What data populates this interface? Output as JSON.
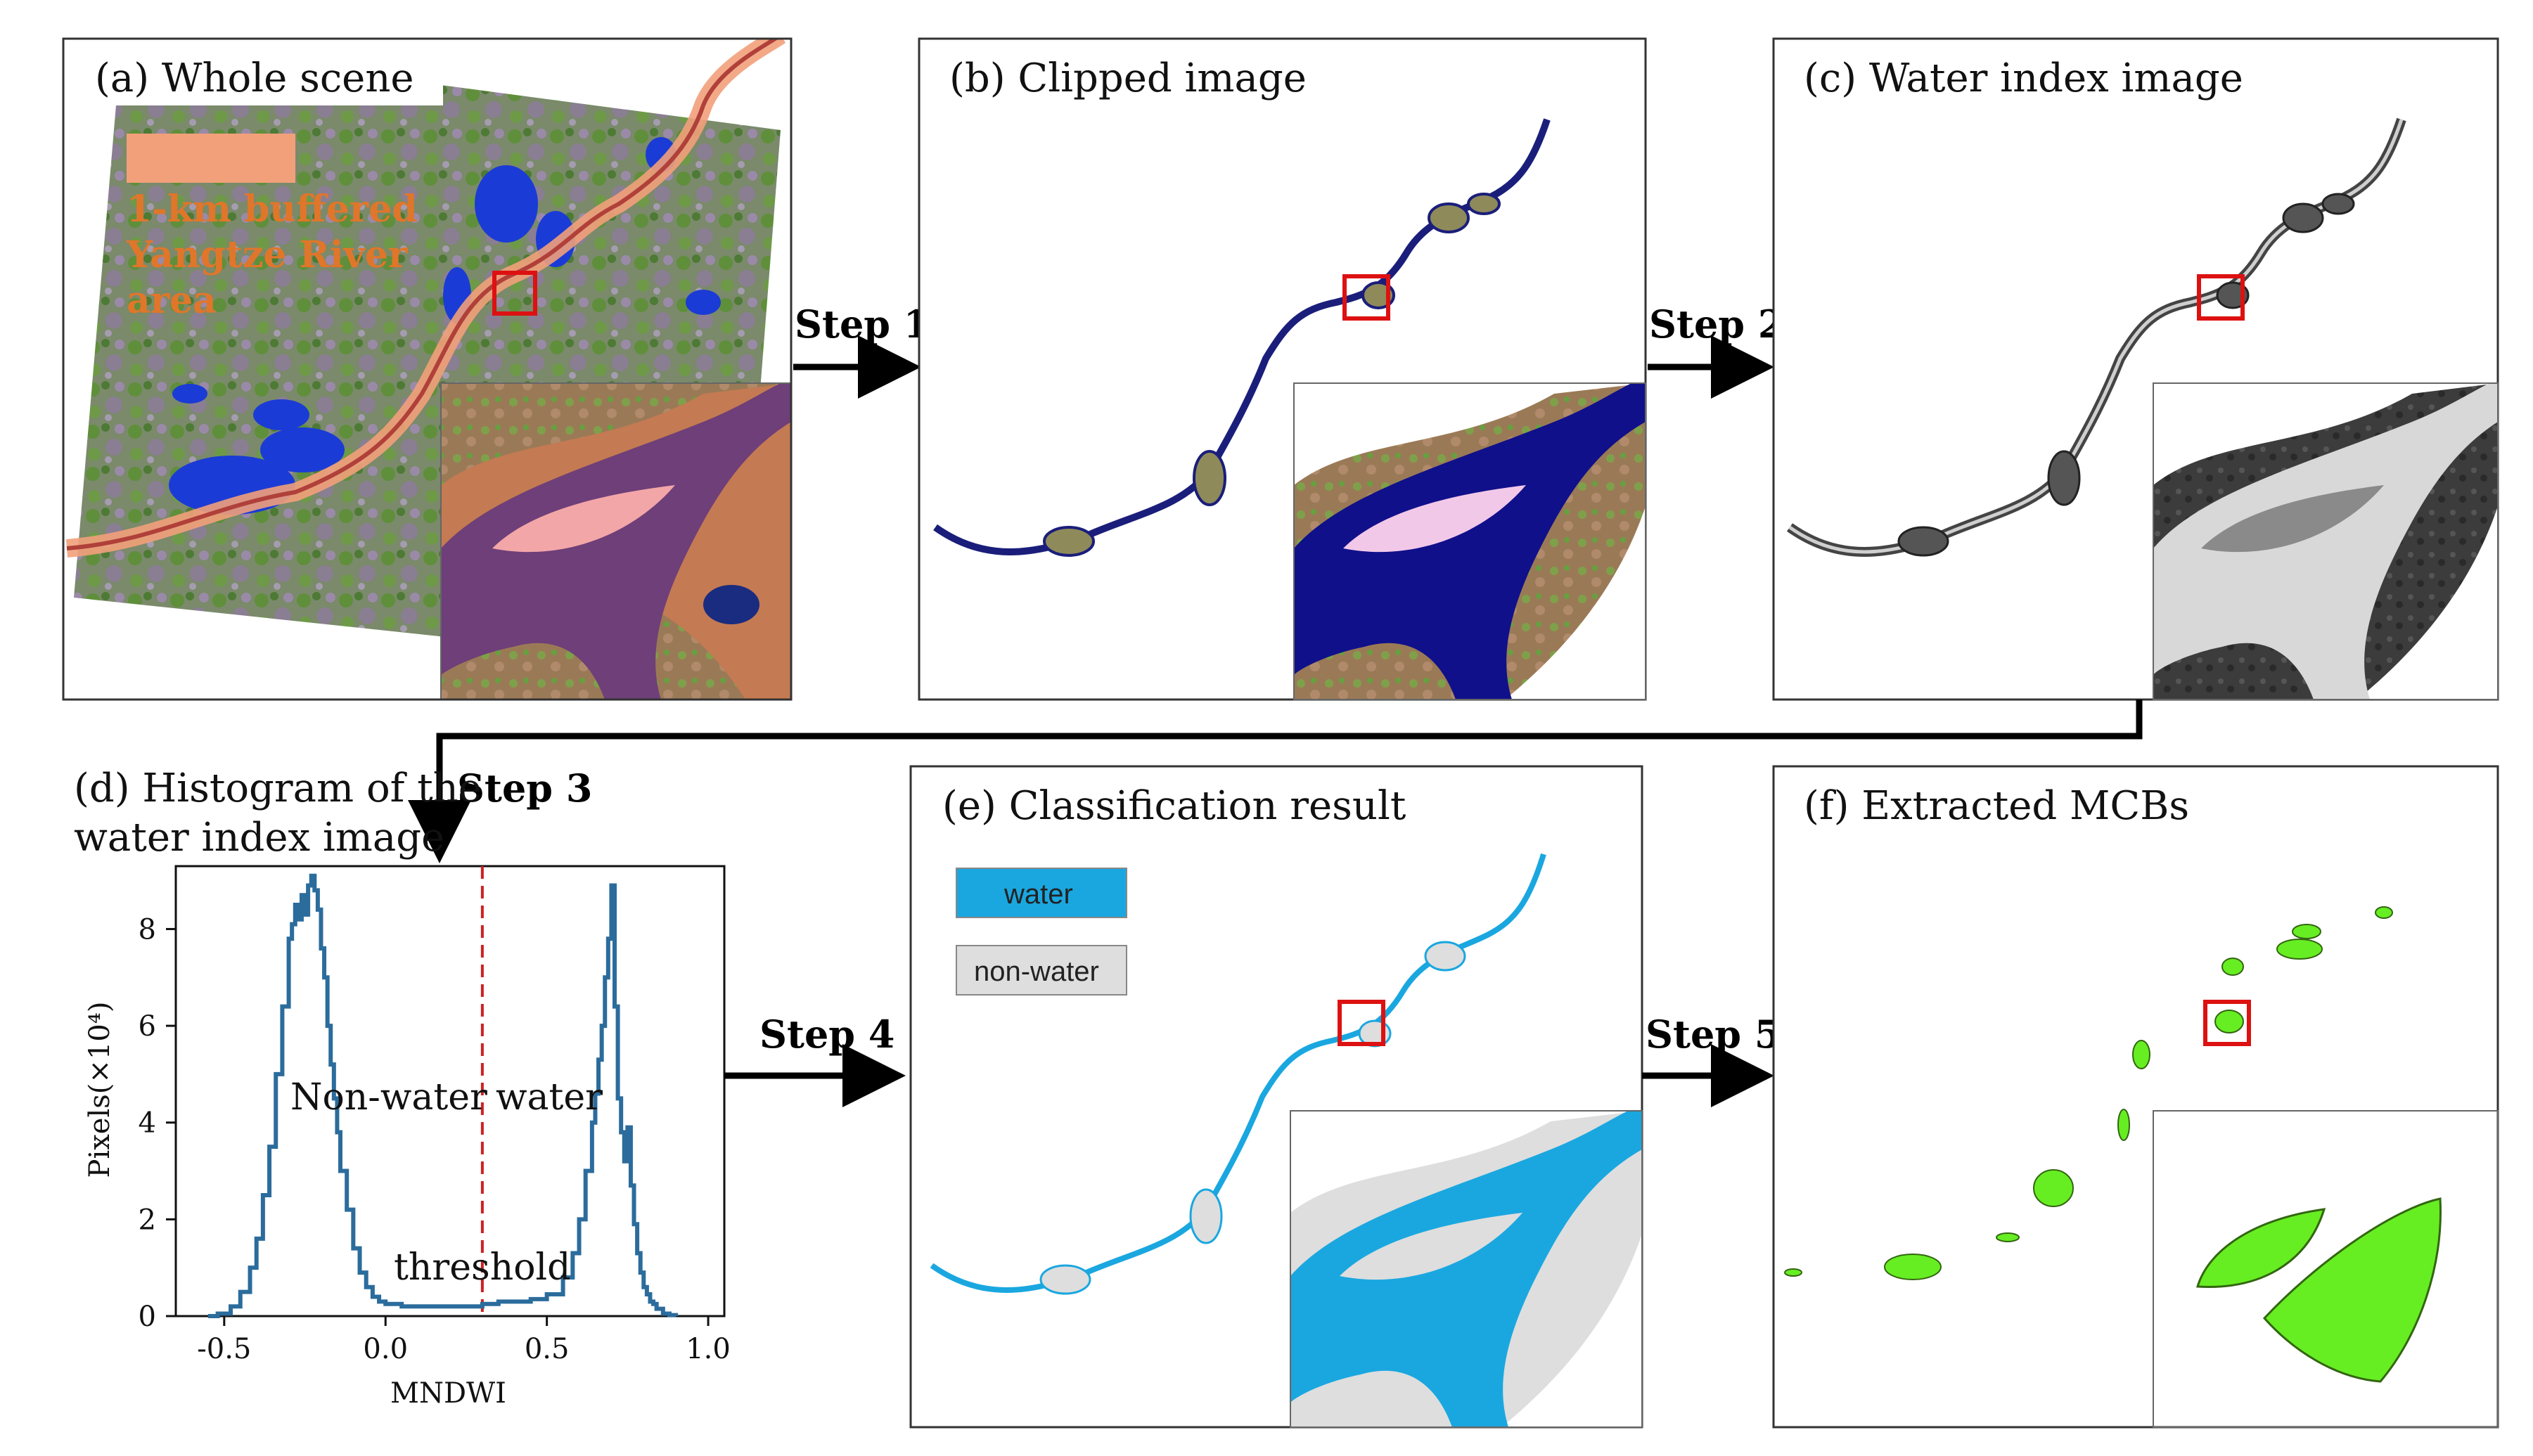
{
  "panels": {
    "a": {
      "title": "(a) Whole scene",
      "legend": [
        "1-km buffered",
        "Yangtze River",
        "area"
      ]
    },
    "b": {
      "title": "(b) Clipped image"
    },
    "c": {
      "title": "(c) Water index image"
    },
    "d": {
      "title_line1": "(d) Histogram of the",
      "title_line2": "water index image"
    },
    "e": {
      "title": "(e)  Classification result",
      "legend_water": "water",
      "legend_nonwater": "non-water"
    },
    "f": {
      "title": "(f) Extracted MCBs"
    }
  },
  "steps": [
    "Step 1",
    "Step 2",
    "Step 3",
    "Step 4",
    "Step 5"
  ],
  "colors": {
    "water_blue": "#1aa7e0",
    "nonwater_gray": "#dedede",
    "mcb_green": "#66ee22",
    "highlight_red": "#dd1111",
    "buffer_orange": "#f2a07a",
    "histogram_line": "#2b6c9c",
    "threshold_line": "#cc2222"
  },
  "chart_data": {
    "type": "line",
    "xlabel": "MNDWI",
    "ylabel": "Pixels(×10⁴)",
    "xlim": [
      -0.65,
      1.05
    ],
    "ylim": [
      0,
      9.3
    ],
    "xticks": [
      "-0.5",
      "0.0",
      "0.5",
      "1.0"
    ],
    "yticks": [
      "0",
      "2",
      "4",
      "6",
      "8"
    ],
    "threshold": 0.3,
    "annotations": {
      "left": "Non-water",
      "right": "water",
      "threshold": "threshold"
    },
    "x": [
      -0.55,
      -0.52,
      -0.48,
      -0.45,
      -0.42,
      -0.4,
      -0.38,
      -0.36,
      -0.34,
      -0.32,
      -0.3,
      -0.29,
      -0.28,
      -0.27,
      -0.26,
      -0.25,
      -0.24,
      -0.23,
      -0.22,
      -0.21,
      -0.2,
      -0.19,
      -0.18,
      -0.17,
      -0.16,
      -0.15,
      -0.14,
      -0.12,
      -0.1,
      -0.08,
      -0.06,
      -0.04,
      -0.02,
      0.0,
      0.05,
      0.1,
      0.15,
      0.2,
      0.25,
      0.3,
      0.35,
      0.4,
      0.45,
      0.5,
      0.55,
      0.58,
      0.6,
      0.62,
      0.64,
      0.65,
      0.66,
      0.67,
      0.68,
      0.69,
      0.7,
      0.71,
      0.72,
      0.73,
      0.74,
      0.75,
      0.76,
      0.77,
      0.78,
      0.79,
      0.8,
      0.81,
      0.82,
      0.83,
      0.84,
      0.86,
      0.88,
      0.9
    ],
    "y": [
      0.0,
      0.05,
      0.2,
      0.5,
      1.0,
      1.6,
      2.5,
      3.5,
      5.0,
      6.4,
      7.8,
      8.1,
      8.5,
      8.2,
      8.7,
      8.3,
      8.9,
      9.1,
      8.8,
      8.4,
      7.6,
      7.0,
      6.0,
      5.2,
      4.5,
      3.8,
      3.0,
      2.2,
      1.4,
      0.9,
      0.6,
      0.4,
      0.3,
      0.25,
      0.2,
      0.2,
      0.2,
      0.2,
      0.2,
      0.25,
      0.3,
      0.3,
      0.35,
      0.45,
      0.8,
      1.3,
      2.0,
      3.0,
      4.0,
      4.6,
      5.3,
      6.0,
      7.0,
      7.8,
      8.9,
      6.4,
      4.5,
      3.8,
      3.2,
      3.9,
      2.7,
      1.9,
      1.3,
      0.9,
      0.6,
      0.45,
      0.3,
      0.25,
      0.15,
      0.05,
      0.02,
      0.0
    ]
  }
}
